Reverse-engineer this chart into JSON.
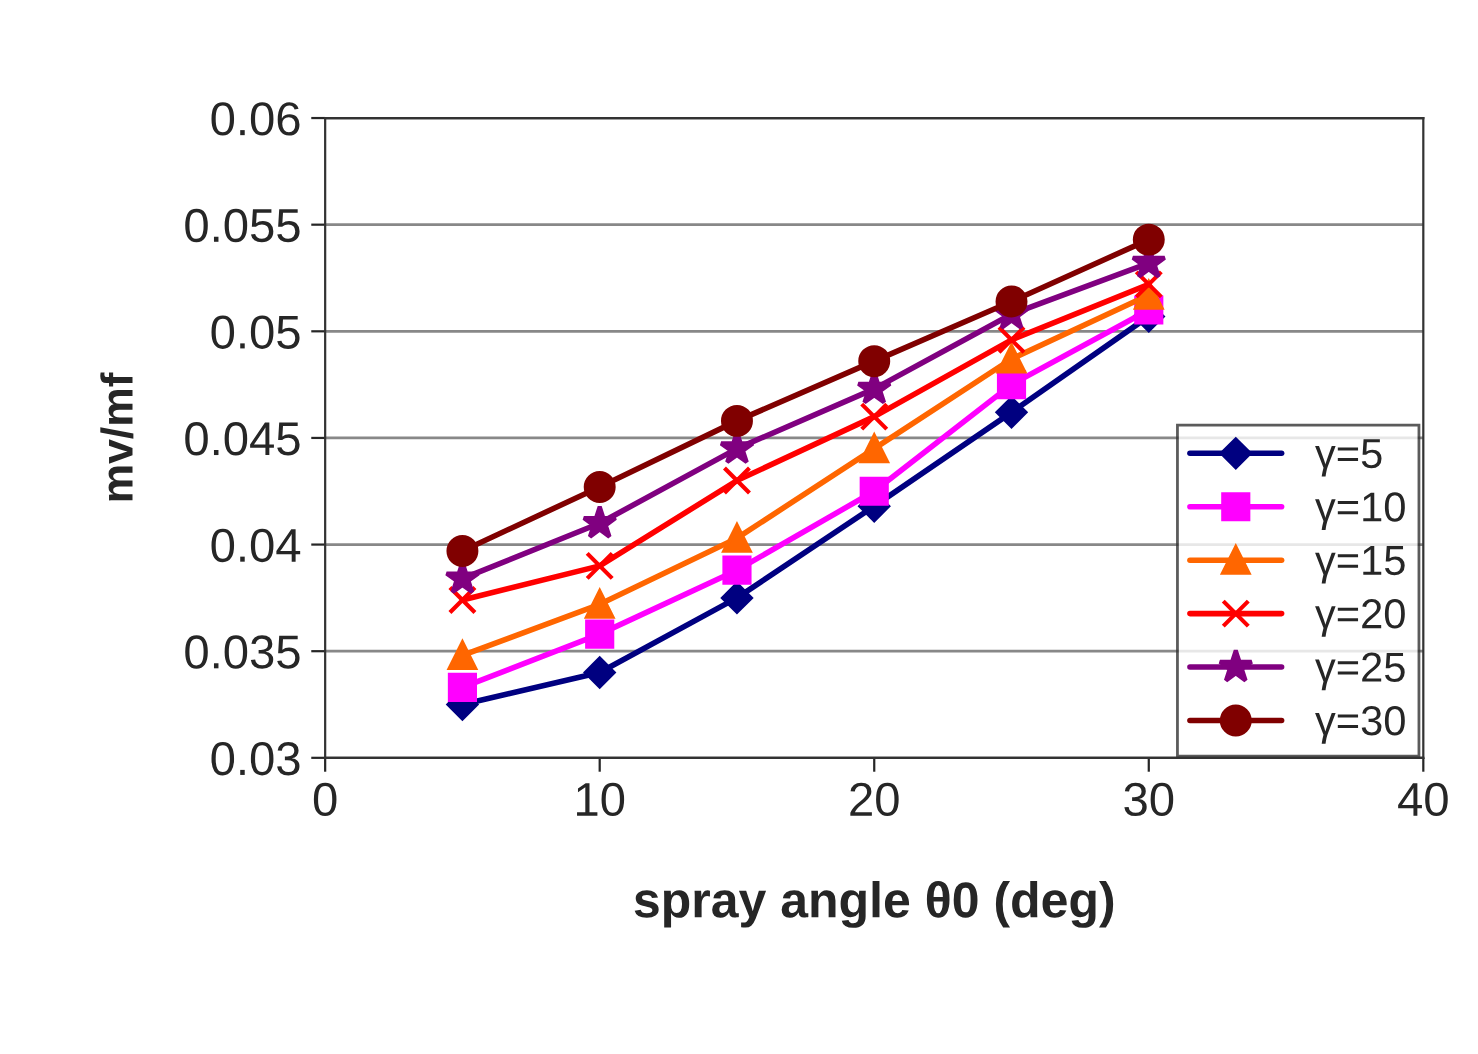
{
  "chart_data": {
    "type": "line",
    "xlabel": "spray angle θ0 (deg)",
    "ylabel": "mv/mf",
    "x": [
      5,
      10,
      15,
      20,
      25,
      30
    ],
    "series": [
      {
        "name": "γ=5",
        "color": "#000080",
        "marker": "diamond",
        "values": [
          0.0325,
          0.034,
          0.0375,
          0.0418,
          0.0462,
          0.0507
        ]
      },
      {
        "name": "γ=10",
        "color": "#ff00ff",
        "marker": "square",
        "values": [
          0.0333,
          0.0358,
          0.0388,
          0.0425,
          0.0475,
          0.051
        ]
      },
      {
        "name": "γ=15",
        "color": "#ff6600",
        "marker": "triangle",
        "values": [
          0.0348,
          0.0372,
          0.0403,
          0.0445,
          0.0487,
          0.0517
        ]
      },
      {
        "name": "γ=20",
        "color": "#ff0000",
        "marker": "cross",
        "values": [
          0.0374,
          0.039,
          0.043,
          0.046,
          0.0496,
          0.0522
        ]
      },
      {
        "name": "γ=25",
        "color": "#800080",
        "marker": "star",
        "values": [
          0.0384,
          0.041,
          0.0445,
          0.0473,
          0.0508,
          0.0532
        ]
      },
      {
        "name": "γ=30",
        "color": "#800000",
        "marker": "circle",
        "values": [
          0.0397,
          0.0427,
          0.0458,
          0.0486,
          0.0514,
          0.0543
        ]
      }
    ],
    "xlim": [
      0,
      40
    ],
    "xticks": [
      0,
      10,
      20,
      30,
      40
    ],
    "ylim": [
      0.03,
      0.06
    ],
    "yticks": [
      0.03,
      0.035,
      0.04,
      0.045,
      0.05,
      0.055,
      0.06
    ],
    "grid": "y",
    "legend": "right",
    "line_style": "solid"
  }
}
